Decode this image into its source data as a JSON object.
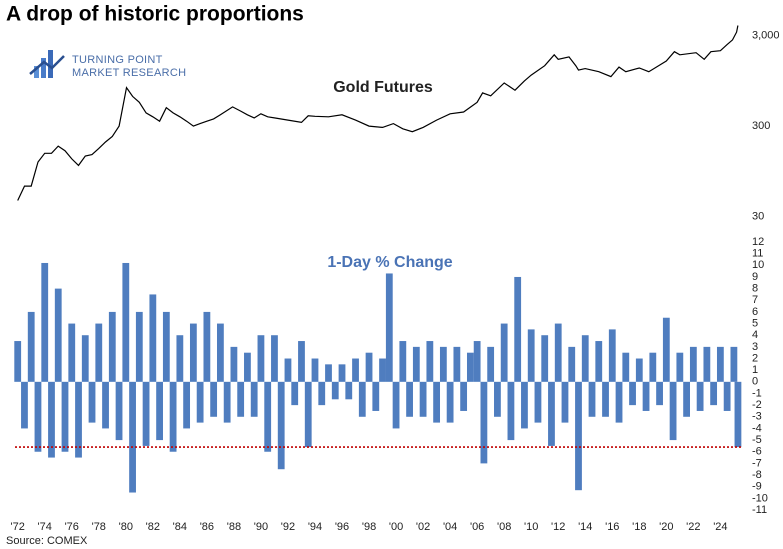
{
  "title": "A drop of historic proportions",
  "logo": [
    "TURNING POINT",
    "MARKET RESEARCH"
  ],
  "source": "Source: COMEX",
  "chart_data": [
    {
      "type": "line",
      "title": "Gold Futures",
      "color": "#000000",
      "log_scale": true,
      "xlim": [
        1971.8,
        2025.6
      ],
      "ylim": [
        26,
        5100
      ],
      "yticks": [
        30,
        300,
        {
          "value": 3000,
          "label": "3,000"
        }
      ],
      "x": [
        1972,
        1972.5,
        1973,
        1973.5,
        1974,
        1974.5,
        1975,
        1975.5,
        1976,
        1976.5,
        1977,
        1977.5,
        1978,
        1978.5,
        1979,
        1979.5,
        1980.05,
        1980.5,
        1981,
        1981.5,
        1982,
        1982.5,
        1983,
        1983.5,
        1984,
        1984.5,
        1985,
        1985.5,
        1986,
        1986.5,
        1987,
        1987.9,
        1988.5,
        1989,
        1989.5,
        1990,
        1990.5,
        1991,
        1992,
        1993,
        1993.5,
        1994,
        1995,
        1996,
        1997,
        1998,
        1999,
        1999.8,
        2000.5,
        2001.2,
        2002,
        2003,
        2004,
        2005,
        2006,
        2006.4,
        2007,
        2008,
        2008.8,
        2009.5,
        2010,
        2011,
        2011.7,
        2012,
        2012.8,
        2013.3,
        2013.5,
        2014,
        2015,
        2015.9,
        2016.5,
        2017,
        2018,
        2018.7,
        2019.5,
        2020,
        2020.6,
        2021,
        2022.2,
        2022.8,
        2023.3,
        2024,
        2024.5,
        2024.9,
        2025.2,
        2025.3
      ],
      "values": [
        45,
        65,
        65,
        120,
        150,
        150,
        180,
        160,
        130,
        110,
        140,
        145,
        170,
        200,
        230,
        300,
        800,
        640,
        550,
        420,
        380,
        340,
        480,
        420,
        380,
        340,
        300,
        320,
        340,
        360,
        400,
        490,
        440,
        400,
        370,
        410,
        380,
        370,
        350,
        330,
        390,
        385,
        380,
        400,
        350,
        300,
        290,
        320,
        280,
        260,
        290,
        350,
        410,
        430,
        550,
        700,
        650,
        900,
        750,
        950,
        1100,
        1400,
        1850,
        1650,
        1750,
        1400,
        1250,
        1300,
        1200,
        1060,
        1350,
        1200,
        1320,
        1200,
        1420,
        1580,
        2000,
        1850,
        1950,
        1650,
        2000,
        2050,
        2400,
        2700,
        3300,
        3900
      ]
    },
    {
      "type": "bar",
      "title": "1-Day % Change",
      "color": "#4f7dbf",
      "title_color": "#4a73b5",
      "xlim": [
        1971.8,
        2025.6
      ],
      "ylim": [
        -11,
        12
      ],
      "yticks": [
        -11,
        -10,
        -9,
        -8,
        -7,
        -6,
        -5,
        -4,
        -3,
        -2,
        -1,
        0,
        1,
        2,
        3,
        4,
        5,
        6,
        7,
        8,
        9,
        10,
        11,
        12
      ],
      "xticks": [
        {
          "value": 1972,
          "label": "'72"
        },
        {
          "value": 1974,
          "label": "'74"
        },
        {
          "value": 1976,
          "label": "'76"
        },
        {
          "value": 1978,
          "label": "'78"
        },
        {
          "value": 1980,
          "label": "'80"
        },
        {
          "value": 1982,
          "label": "'82"
        },
        {
          "value": 1984,
          "label": "'84"
        },
        {
          "value": 1986,
          "label": "'86"
        },
        {
          "value": 1988,
          "label": "'88"
        },
        {
          "value": 1990,
          "label": "'90"
        },
        {
          "value": 1992,
          "label": "'92"
        },
        {
          "value": 1994,
          "label": "'94"
        },
        {
          "value": 1996,
          "label": "'96"
        },
        {
          "value": 1998,
          "label": "'98"
        },
        {
          "value": 2000,
          "label": "'00"
        },
        {
          "value": 2002,
          "label": "'02"
        },
        {
          "value": 2004,
          "label": "'04"
        },
        {
          "value": 2006,
          "label": "'06"
        },
        {
          "value": 2008,
          "label": "'08"
        },
        {
          "value": 2010,
          "label": "'10"
        },
        {
          "value": 2012,
          "label": "'12"
        },
        {
          "value": 2014,
          "label": "'14"
        },
        {
          "value": 2016,
          "label": "'16"
        },
        {
          "value": 2018,
          "label": "'18"
        },
        {
          "value": 2020,
          "label": "'20"
        },
        {
          "value": 2022,
          "label": "'22"
        },
        {
          "value": 2024,
          "label": "'24"
        }
      ],
      "reference_line": {
        "value": -5.6,
        "color": "#c00000"
      },
      "x": [
        1972,
        1972.5,
        1973,
        1973.5,
        1974,
        1974.5,
        1975,
        1975.5,
        1976,
        1976.5,
        1977,
        1977.5,
        1978,
        1978.5,
        1979,
        1979.5,
        1980,
        1980.5,
        1981,
        1981.5,
        1982,
        1982.5,
        1983,
        1983.5,
        1984,
        1984.5,
        1985,
        1985.5,
        1986,
        1986.5,
        1987,
        1987.5,
        1988,
        1988.5,
        1989,
        1989.5,
        1990,
        1990.5,
        1991,
        1991.5,
        1992,
        1992.5,
        1993,
        1993.5,
        1994,
        1994.5,
        1995,
        1995.5,
        1996,
        1996.5,
        1997,
        1997.5,
        1998,
        1998.5,
        1999,
        1999.5,
        2000,
        2000.5,
        2001,
        2001.5,
        2002,
        2002.5,
        2003,
        2003.5,
        2004,
        2004.5,
        2005,
        2005.5,
        2006,
        2006.5,
        2007,
        2007.5,
        2008,
        2008.5,
        2009,
        2009.5,
        2010,
        2010.5,
        2011,
        2011.5,
        2012,
        2012.5,
        2013,
        2013.5,
        2014,
        2014.5,
        2015,
        2015.5,
        2016,
        2016.5,
        2017,
        2017.5,
        2018,
        2018.5,
        2019,
        2019.5,
        2020,
        2020.5,
        2021,
        2021.5,
        2022,
        2022.5,
        2023,
        2023.5,
        2024,
        2024.5,
        2025,
        2025.3
      ],
      "values": [
        3.5,
        -4,
        6,
        -6,
        10.2,
        -6.5,
        8,
        -6,
        5,
        -6.5,
        4,
        -3.5,
        5,
        -4,
        6,
        -5,
        10.2,
        -9.5,
        6,
        -5.5,
        7.5,
        -5,
        6,
        -6,
        4,
        -4,
        5,
        -3.5,
        6,
        -3,
        5,
        -3.5,
        3,
        -3,
        2.5,
        -3,
        4,
        -6,
        4,
        -7.5,
        2,
        -2,
        3.5,
        -5.6,
        2,
        -2,
        1.5,
        -1.5,
        1.5,
        -1.5,
        2,
        -3,
        2.5,
        -2.5,
        2,
        9.3,
        -4,
        3.5,
        -3,
        3,
        -3,
        3.5,
        -3.5,
        3,
        -3.5,
        3,
        -2.5,
        2.5,
        3.5,
        -7,
        3,
        -3,
        5,
        -5,
        9,
        -4,
        4.5,
        -3.5,
        4,
        -5.5,
        5,
        -3.5,
        3,
        -9.3,
        4,
        -3,
        3.5,
        -3,
        4.5,
        -3.5,
        2.5,
        -2,
        2,
        -2.5,
        2.5,
        -2,
        5.5,
        -5,
        2.5,
        -3,
        3,
        -2.5,
        3,
        -2,
        3,
        -2.5,
        3,
        -5.6
      ]
    }
  ]
}
